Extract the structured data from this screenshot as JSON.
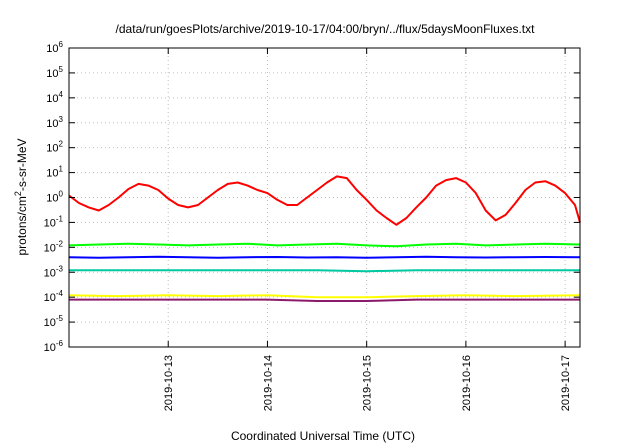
{
  "chart_data": {
    "type": "line",
    "title": "/data/run/goesPlots/archive/2019-10-17/04:00/bryn/../flux/5daysMoonFluxes.txt",
    "xlabel": "Coordinated Universal Time (UTC)",
    "ylabel_base": "protons/cm",
    "ylabel_sup": "2",
    "ylabel_rest": "-s-sr-MeV",
    "y_scale": "log",
    "ylim_exp": [
      -6,
      6
    ],
    "y_ticks": [
      {
        "base": "10",
        "exp": "-6"
      },
      {
        "base": "10",
        "exp": "-5"
      },
      {
        "base": "10",
        "exp": "-4"
      },
      {
        "base": "10",
        "exp": "-3"
      },
      {
        "base": "10",
        "exp": "-2"
      },
      {
        "base": "10",
        "exp": "-1"
      },
      {
        "base": "10",
        "exp": "0"
      },
      {
        "base": "10",
        "exp": "1"
      },
      {
        "base": "10",
        "exp": "2"
      },
      {
        "base": "10",
        "exp": "3"
      },
      {
        "base": "10",
        "exp": "4"
      },
      {
        "base": "10",
        "exp": "5"
      },
      {
        "base": "10",
        "exp": "6"
      }
    ],
    "xlim_days": [
      12.0,
      17.15
    ],
    "x_ticks": [
      {
        "day": 13,
        "label": "2019-10-13"
      },
      {
        "day": 14,
        "label": "2019-10-14"
      },
      {
        "day": 15,
        "label": "2019-10-15"
      },
      {
        "day": 16,
        "label": "2019-10-16"
      },
      {
        "day": 17,
        "label": "2019-10-17"
      }
    ],
    "grid": true,
    "legend": "none",
    "series": [
      {
        "color": "#ff0000",
        "points": [
          [
            12.0,
            1.2
          ],
          [
            12.1,
            0.6
          ],
          [
            12.2,
            0.4
          ],
          [
            12.3,
            0.3
          ],
          [
            12.4,
            0.5
          ],
          [
            12.5,
            1.0
          ],
          [
            12.6,
            2.2
          ],
          [
            12.7,
            3.5
          ],
          [
            12.8,
            3.0
          ],
          [
            12.9,
            2.0
          ],
          [
            13.0,
            0.9
          ],
          [
            13.1,
            0.5
          ],
          [
            13.2,
            0.4
          ],
          [
            13.3,
            0.5
          ],
          [
            13.4,
            1.0
          ],
          [
            13.5,
            2.0
          ],
          [
            13.6,
            3.5
          ],
          [
            13.7,
            4.0
          ],
          [
            13.8,
            3.0
          ],
          [
            13.9,
            2.0
          ],
          [
            14.0,
            1.5
          ],
          [
            14.1,
            0.8
          ],
          [
            14.2,
            0.5
          ],
          [
            14.3,
            0.5
          ],
          [
            14.4,
            1.0
          ],
          [
            14.5,
            2.0
          ],
          [
            14.6,
            4.0
          ],
          [
            14.7,
            7.0
          ],
          [
            14.8,
            6.0
          ],
          [
            14.9,
            2.0
          ],
          [
            15.0,
            0.8
          ],
          [
            15.1,
            0.3
          ],
          [
            15.2,
            0.15
          ],
          [
            15.3,
            0.08
          ],
          [
            15.4,
            0.15
          ],
          [
            15.5,
            0.4
          ],
          [
            15.6,
            1.0
          ],
          [
            15.7,
            3.0
          ],
          [
            15.8,
            5.0
          ],
          [
            15.9,
            6.0
          ],
          [
            16.0,
            4.0
          ],
          [
            16.1,
            1.5
          ],
          [
            16.2,
            0.3
          ],
          [
            16.3,
            0.12
          ],
          [
            16.4,
            0.2
          ],
          [
            16.5,
            0.6
          ],
          [
            16.6,
            2.0
          ],
          [
            16.7,
            4.0
          ],
          [
            16.8,
            4.5
          ],
          [
            16.9,
            3.0
          ],
          [
            17.0,
            1.5
          ],
          [
            17.1,
            0.5
          ],
          [
            17.15,
            0.1
          ]
        ]
      },
      {
        "color": "#00ff00",
        "points": [
          [
            12.0,
            0.012
          ],
          [
            12.3,
            0.013
          ],
          [
            12.6,
            0.014
          ],
          [
            12.9,
            0.013
          ],
          [
            13.2,
            0.012
          ],
          [
            13.5,
            0.013
          ],
          [
            13.8,
            0.014
          ],
          [
            14.1,
            0.012
          ],
          [
            14.4,
            0.013
          ],
          [
            14.7,
            0.014
          ],
          [
            15.0,
            0.012
          ],
          [
            15.3,
            0.011
          ],
          [
            15.6,
            0.013
          ],
          [
            15.9,
            0.014
          ],
          [
            16.2,
            0.012
          ],
          [
            16.5,
            0.013
          ],
          [
            16.8,
            0.014
          ],
          [
            17.15,
            0.013
          ]
        ]
      },
      {
        "color": "#0000ff",
        "points": [
          [
            12.0,
            0.004
          ],
          [
            12.3,
            0.0038
          ],
          [
            12.6,
            0.004
          ],
          [
            12.9,
            0.0042
          ],
          [
            13.2,
            0.004
          ],
          [
            13.5,
            0.0038
          ],
          [
            13.8,
            0.004
          ],
          [
            14.1,
            0.0041
          ],
          [
            14.4,
            0.0039
          ],
          [
            14.7,
            0.004
          ],
          [
            15.0,
            0.0038
          ],
          [
            15.3,
            0.004
          ],
          [
            15.6,
            0.0042
          ],
          [
            15.9,
            0.004
          ],
          [
            16.2,
            0.0039
          ],
          [
            16.5,
            0.004
          ],
          [
            16.8,
            0.0041
          ],
          [
            17.15,
            0.004
          ]
        ]
      },
      {
        "color": "#00c8a0",
        "points": [
          [
            12.0,
            0.0012
          ],
          [
            12.5,
            0.0012
          ],
          [
            13.0,
            0.0012
          ],
          [
            13.5,
            0.0012
          ],
          [
            14.0,
            0.0012
          ],
          [
            14.5,
            0.0012
          ],
          [
            15.0,
            0.0011
          ],
          [
            15.5,
            0.0012
          ],
          [
            16.0,
            0.0012
          ],
          [
            16.5,
            0.0012
          ],
          [
            17.15,
            0.0012
          ]
        ]
      },
      {
        "color": "#ffff00",
        "points": [
          [
            12.0,
            0.00012
          ],
          [
            12.5,
            0.00011
          ],
          [
            13.0,
            0.00012
          ],
          [
            13.5,
            0.00011
          ],
          [
            14.0,
            0.00012
          ],
          [
            14.5,
            0.0001
          ],
          [
            15.0,
            0.0001
          ],
          [
            15.5,
            0.00011
          ],
          [
            16.0,
            0.00012
          ],
          [
            16.5,
            0.00011
          ],
          [
            17.15,
            0.00012
          ]
        ]
      },
      {
        "color": "#8b1a6b",
        "points": [
          [
            12.0,
            8e-05
          ],
          [
            12.5,
            8e-05
          ],
          [
            13.0,
            8e-05
          ],
          [
            13.5,
            8e-05
          ],
          [
            14.0,
            8e-05
          ],
          [
            14.5,
            7e-05
          ],
          [
            15.0,
            7e-05
          ],
          [
            15.5,
            8e-05
          ],
          [
            16.0,
            8e-05
          ],
          [
            16.5,
            8e-05
          ],
          [
            17.15,
            8e-05
          ]
        ]
      }
    ]
  }
}
